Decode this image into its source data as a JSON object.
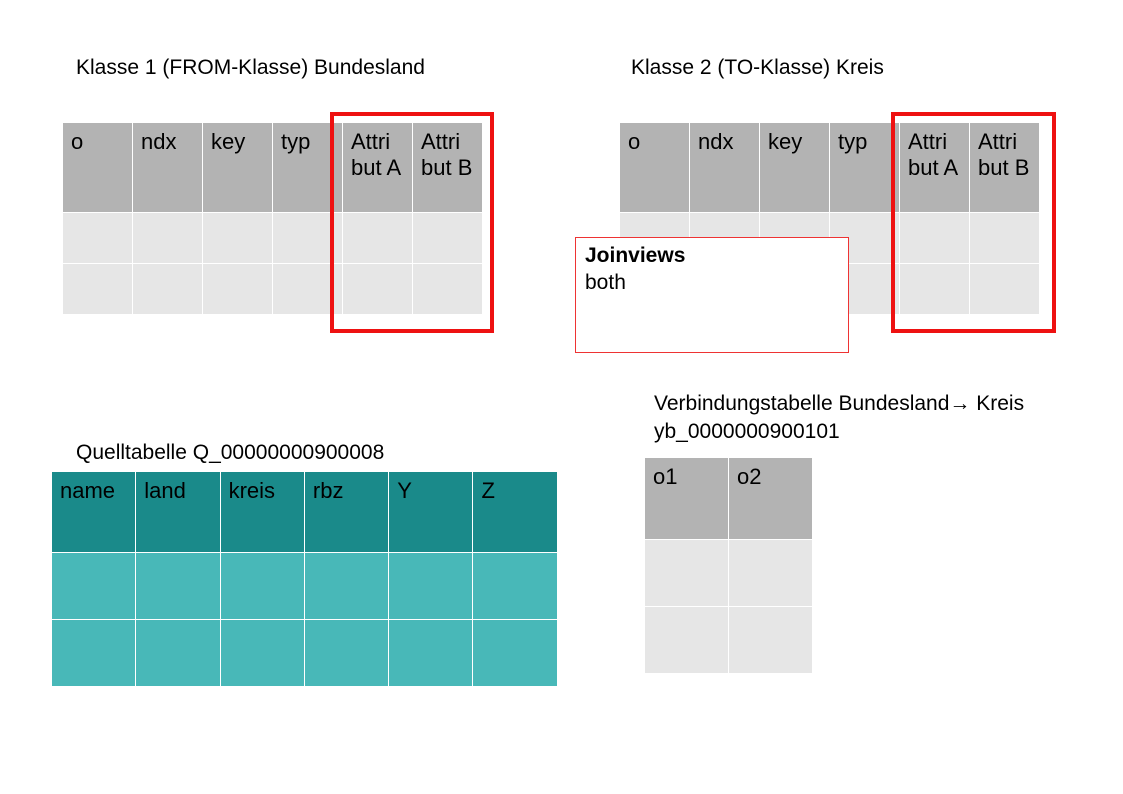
{
  "class1": {
    "title": "Klasse 1 (FROM-Klasse) Bundesland",
    "headers": [
      "o",
      "ndx",
      "key",
      "typ",
      "Attri but A",
      "Attri but B"
    ]
  },
  "class2": {
    "title": "Klasse 2 (TO-Klasse) Kreis",
    "headers": [
      "o",
      "ndx",
      "key",
      "typ",
      "Attri but A",
      "Attri but B"
    ]
  },
  "joinviews": {
    "title": "Joinviews",
    "value": "both"
  },
  "link_table": {
    "title": "Verbindungstabelle Bundesland→ Kreis",
    "name": "yb_0000000900101",
    "headers": [
      "o1",
      "o2"
    ]
  },
  "source_table": {
    "title": "Quelltabelle Q_00000000900008",
    "headers": [
      "name",
      "land",
      "kreis",
      "rbz",
      "Y",
      "Z"
    ]
  }
}
